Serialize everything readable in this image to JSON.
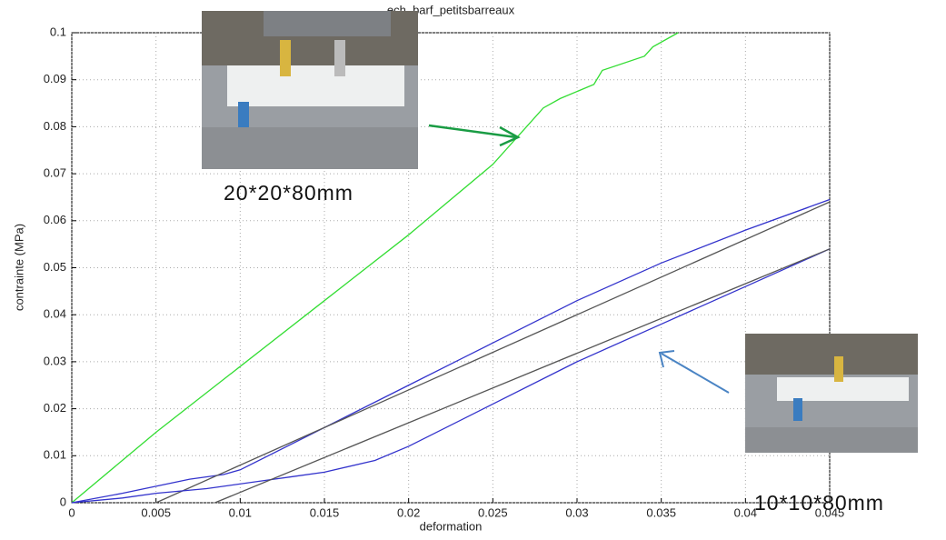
{
  "chart_data": {
    "type": "line",
    "title": "ech_barf_petitsbarreaux",
    "xlabel": "deformation",
    "ylabel": "contrainte (MPa)",
    "xlim": [
      0,
      0.045
    ],
    "ylim": [
      0,
      0.1
    ],
    "xticks": [
      0,
      0.005,
      0.01,
      0.015,
      0.02,
      0.025,
      0.03,
      0.035,
      0.04,
      0.045
    ],
    "yticks": [
      0,
      0.01,
      0.02,
      0.03,
      0.04,
      0.05,
      0.06,
      0.07,
      0.08,
      0.09,
      0.1
    ],
    "grid": true,
    "annotations": [
      "20*20*80mm",
      "10*10*80mm"
    ],
    "series": [
      {
        "color": "#33dd33",
        "x": [
          0,
          0.005,
          0.01,
          0.015,
          0.02,
          0.025,
          0.028,
          0.029,
          0.031,
          0.0315,
          0.034,
          0.0345,
          0.036
        ],
        "values": [
          0,
          0.015,
          0.029,
          0.043,
          0.057,
          0.072,
          0.084,
          0.086,
          0.089,
          0.092,
          0.095,
          0.097,
          0.1
        ]
      },
      {
        "color": "#3333cc",
        "x": [
          0,
          0.003,
          0.007,
          0.009,
          0.01,
          0.015,
          0.02,
          0.025,
          0.03,
          0.035,
          0.04,
          0.045
        ],
        "values": [
          0,
          0.002,
          0.005,
          0.006,
          0.007,
          0.016,
          0.025,
          0.034,
          0.043,
          0.051,
          0.058,
          0.0645
        ]
      },
      {
        "color": "#555555",
        "x": [
          0.005,
          0.045
        ],
        "values": [
          0,
          0.064
        ]
      },
      {
        "color": "#3333cc",
        "x": [
          0,
          0.003,
          0.005,
          0.008,
          0.012,
          0.013,
          0.015,
          0.018,
          0.02,
          0.025,
          0.03,
          0.035,
          0.04,
          0.045
        ],
        "values": [
          0,
          0.001,
          0.002,
          0.003,
          0.005,
          0.0055,
          0.0065,
          0.009,
          0.012,
          0.021,
          0.03,
          0.038,
          0.046,
          0.054
        ]
      },
      {
        "color": "#555555",
        "x": [
          0.0085,
          0.045
        ],
        "values": [
          0,
          0.054
        ]
      }
    ]
  }
}
